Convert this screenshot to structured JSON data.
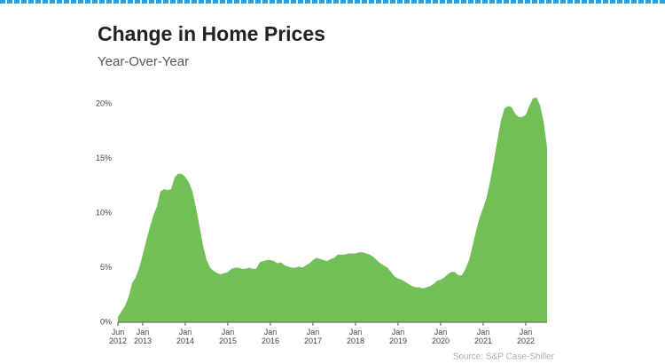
{
  "chart_data": {
    "type": "area",
    "title": "Change in Home Prices",
    "subtitle": "Year-Over-Year",
    "source": "Source: S&P Case-Shiller",
    "color": "#72bf58",
    "grid": false,
    "x": [
      "2012-06",
      "2012-07",
      "2012-08",
      "2012-09",
      "2012-10",
      "2012-11",
      "2012-12",
      "2013-01",
      "2013-02",
      "2013-03",
      "2013-04",
      "2013-05",
      "2013-06",
      "2013-07",
      "2013-08",
      "2013-09",
      "2013-10",
      "2013-11",
      "2013-12",
      "2014-01",
      "2014-02",
      "2014-03",
      "2014-04",
      "2014-05",
      "2014-06",
      "2014-07",
      "2014-08",
      "2014-09",
      "2014-10",
      "2014-11",
      "2014-12",
      "2015-01",
      "2015-02",
      "2015-03",
      "2015-04",
      "2015-05",
      "2015-06",
      "2015-07",
      "2015-08",
      "2015-09",
      "2015-10",
      "2015-11",
      "2015-12",
      "2016-01",
      "2016-02",
      "2016-03",
      "2016-04",
      "2016-05",
      "2016-06",
      "2016-07",
      "2016-08",
      "2016-09",
      "2016-10",
      "2016-11",
      "2016-12",
      "2017-01",
      "2017-02",
      "2017-03",
      "2017-04",
      "2017-05",
      "2017-06",
      "2017-07",
      "2017-08",
      "2017-09",
      "2017-10",
      "2017-11",
      "2017-12",
      "2018-01",
      "2018-02",
      "2018-03",
      "2018-04",
      "2018-05",
      "2018-06",
      "2018-07",
      "2018-08",
      "2018-09",
      "2018-10",
      "2018-11",
      "2018-12",
      "2019-01",
      "2019-02",
      "2019-03",
      "2019-04",
      "2019-05",
      "2019-06",
      "2019-07",
      "2019-08",
      "2019-09",
      "2019-10",
      "2019-11",
      "2019-12",
      "2020-01",
      "2020-02",
      "2020-03",
      "2020-04",
      "2020-05",
      "2020-06",
      "2020-07",
      "2020-08",
      "2020-09",
      "2020-10",
      "2020-11",
      "2020-12",
      "2021-01",
      "2021-02",
      "2021-03",
      "2021-04",
      "2021-05",
      "2021-06",
      "2021-07",
      "2021-08",
      "2021-09",
      "2021-10",
      "2021-11",
      "2021-12",
      "2022-01",
      "2022-02",
      "2022-03",
      "2022-04",
      "2022-05",
      "2022-06",
      "2022-07"
    ],
    "values": [
      0.5,
      1.0,
      1.5,
      2.3,
      3.6,
      4.1,
      5.0,
      6.2,
      7.5,
      8.7,
      9.8,
      10.6,
      12.0,
      12.2,
      12.1,
      12.2,
      13.3,
      13.6,
      13.6,
      13.3,
      12.8,
      12.0,
      10.5,
      8.8,
      7.0,
      5.7,
      5.0,
      4.7,
      4.5,
      4.4,
      4.5,
      4.6,
      4.9,
      5.0,
      5.0,
      4.9,
      4.9,
      5.0,
      4.9,
      4.9,
      5.5,
      5.6,
      5.7,
      5.7,
      5.6,
      5.4,
      5.5,
      5.2,
      5.1,
      5.0,
      5.0,
      5.1,
      5.0,
      5.2,
      5.4,
      5.7,
      5.9,
      5.8,
      5.7,
      5.6,
      5.8,
      5.9,
      6.2,
      6.2,
      6.2,
      6.3,
      6.3,
      6.3,
      6.4,
      6.4,
      6.3,
      6.2,
      6.0,
      5.7,
      5.4,
      5.2,
      5.0,
      4.6,
      4.2,
      4.0,
      3.9,
      3.7,
      3.5,
      3.3,
      3.2,
      3.2,
      3.1,
      3.2,
      3.3,
      3.5,
      3.8,
      3.9,
      4.1,
      4.4,
      4.6,
      4.6,
      4.3,
      4.3,
      4.9,
      5.7,
      7.0,
      8.4,
      9.6,
      10.5,
      11.5,
      13.0,
      14.8,
      16.7,
      18.5,
      19.6,
      19.8,
      19.7,
      19.1,
      18.8,
      18.8,
      19.0,
      19.8,
      20.5,
      20.6,
      19.9,
      18.4,
      16.0
    ],
    "ylim": [
      0,
      20.6
    ],
    "yticks": [
      {
        "value": 0,
        "label": "0%"
      },
      {
        "value": 5,
        "label": "5%"
      },
      {
        "value": 10,
        "label": "10%"
      },
      {
        "value": 15,
        "label": "15%"
      },
      {
        "value": 20,
        "label": "20%"
      }
    ],
    "xticks": [
      {
        "value": "2012-06",
        "label": "Jun 2012"
      },
      {
        "value": "2013-01",
        "label": "Jan 2013"
      },
      {
        "value": "2014-01",
        "label": "Jan 2014"
      },
      {
        "value": "2015-01",
        "label": "Jan 2015"
      },
      {
        "value": "2016-01",
        "label": "Jan 2016"
      },
      {
        "value": "2017-01",
        "label": "Jan 2017"
      },
      {
        "value": "2018-01",
        "label": "Jan 2018"
      },
      {
        "value": "2019-01",
        "label": "Jan 2019"
      },
      {
        "value": "2020-01",
        "label": "Jan 2020"
      },
      {
        "value": "2021-01",
        "label": "Jan 2021"
      },
      {
        "value": "2022-01",
        "label": "Jan 2022"
      }
    ]
  }
}
